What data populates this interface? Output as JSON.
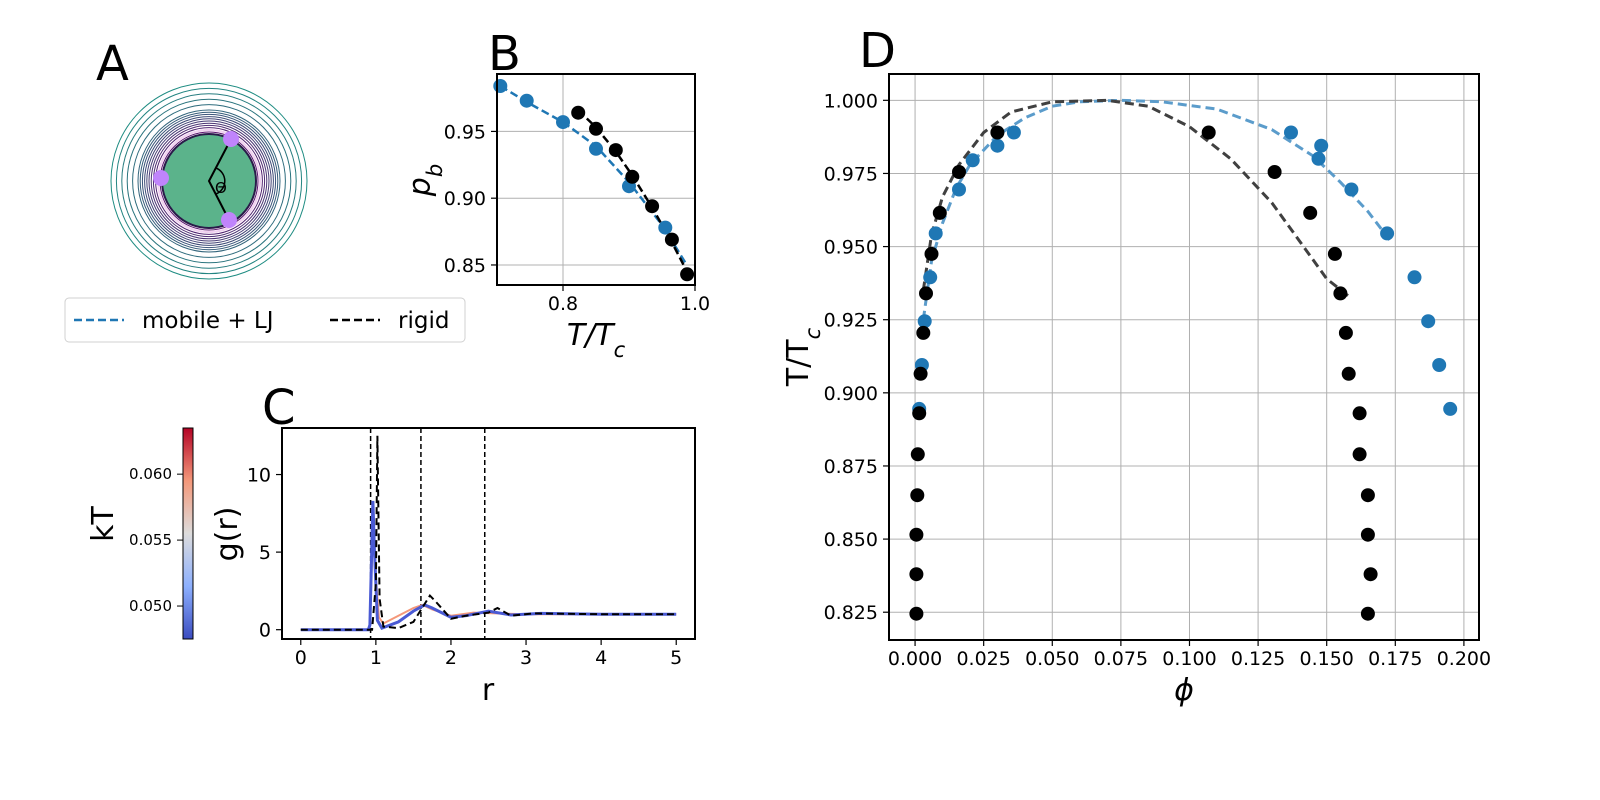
{
  "colors": {
    "mobile": "#1f77b4",
    "mobile_fit": "#5b9ccb",
    "rigid": "#000000",
    "rigid_fit": "#404040",
    "grid": "#b0b0b0",
    "core": "#5bb38b",
    "patch": "#c084fc"
  },
  "legend": {
    "mobile_label": "mobile + LJ",
    "rigid_label": "rigid"
  },
  "chart_data": [
    {
      "panel": "A",
      "type": "diagram",
      "label": "A",
      "angle_label": "Θ"
    },
    {
      "panel": "B",
      "type": "scatter",
      "label": "B",
      "xlabel": "T/T_c",
      "ylabel": "p_b",
      "xlim": [
        0.7,
        1.0
      ],
      "ylim": [
        0.835,
        0.993
      ],
      "xticks": [
        0.8,
        1.0
      ],
      "xtick_labels": [
        "0.8",
        "1.0"
      ],
      "yticks": [
        0.85,
        0.9,
        0.95
      ],
      "ytick_labels": [
        "0.85",
        "0.90",
        "0.95"
      ],
      "series": [
        {
          "name": "mobile + LJ",
          "x": [
            0.705,
            0.745,
            0.8,
            0.85,
            0.9,
            0.955
          ],
          "y": [
            0.984,
            0.973,
            0.957,
            0.937,
            0.909,
            0.878
          ],
          "fit_x": [
            0.705,
            0.745,
            0.8,
            0.85,
            0.9,
            0.95,
            0.985
          ],
          "fit_y": [
            0.984,
            0.972,
            0.957,
            0.939,
            0.912,
            0.88,
            0.852
          ]
        },
        {
          "name": "rigid",
          "x": [
            0.823,
            0.85,
            0.88,
            0.905,
            0.935,
            0.965,
            0.988
          ],
          "y": [
            0.964,
            0.952,
            0.936,
            0.916,
            0.894,
            0.869,
            0.843
          ],
          "fit_x": [
            0.823,
            0.85,
            0.88,
            0.905,
            0.935,
            0.965,
            0.99
          ],
          "fit_y": [
            0.966,
            0.953,
            0.935,
            0.917,
            0.893,
            0.867,
            0.843
          ]
        }
      ]
    },
    {
      "panel": "C",
      "type": "line",
      "label": "C",
      "xlabel": "r",
      "ylabel": "g(r)",
      "xlim": [
        -0.25,
        5.25
      ],
      "ylim": [
        -0.6,
        13.0
      ],
      "xticks": [
        0,
        1,
        2,
        3,
        4,
        5
      ],
      "xtick_labels": [
        "0",
        "1",
        "2",
        "3",
        "4",
        "5"
      ],
      "yticks": [
        0,
        5,
        10
      ],
      "ytick_labels": [
        "0",
        "5",
        "10"
      ],
      "vlines": [
        0.93,
        1.6,
        2.45
      ],
      "series": [
        {
          "name": "kT 0.050",
          "x": [
            0,
            0.9,
            0.92,
            0.96,
            0.98,
            1.02,
            1.08,
            1.3,
            1.5,
            1.65,
            1.75,
            2.0,
            2.2,
            2.5,
            2.8,
            3.2,
            4.0,
            5.0
          ],
          "y": [
            0,
            0,
            0.3,
            8.3,
            5.2,
            0.6,
            0.1,
            0.5,
            1.2,
            1.6,
            1.4,
            0.8,
            0.9,
            1.2,
            0.95,
            1.05,
            1.0,
            1.0
          ]
        },
        {
          "name": "kT 0.060",
          "x": [
            0,
            0.9,
            0.92,
            0.96,
            0.99,
            1.04,
            1.1,
            1.3,
            1.5,
            1.62,
            1.75,
            2.0,
            2.3,
            2.6,
            3.0,
            4.0,
            5.0
          ],
          "y": [
            0,
            0,
            0.2,
            6.5,
            4.0,
            0.8,
            0.4,
            0.9,
            1.4,
            1.6,
            1.3,
            0.9,
            1.1,
            1.05,
            1.0,
            1.0,
            1.0
          ]
        },
        {
          "name": "rigid",
          "x": [
            0,
            0.95,
            1.0,
            1.02,
            1.03,
            1.05,
            1.1,
            1.3,
            1.5,
            1.72,
            1.8,
            2.0,
            2.2,
            2.5,
            2.62,
            2.8,
            3.1,
            4.0,
            5.0
          ],
          "y": [
            0,
            0,
            3.0,
            12.5,
            9.0,
            2.0,
            0.2,
            0.1,
            0.5,
            2.2,
            1.8,
            0.7,
            0.9,
            1.1,
            1.4,
            0.9,
            1.05,
            1.0,
            1.0
          ]
        }
      ],
      "colorbar": {
        "label": "kT",
        "range": [
          0.0475,
          0.0635
        ],
        "ticks": [
          0.05,
          0.055,
          0.06
        ],
        "tick_labels": [
          "0.050",
          "0.055",
          "0.060"
        ]
      }
    },
    {
      "panel": "D",
      "type": "scatter",
      "label": "D",
      "xlabel": "ϕ",
      "ylabel": "T/T_c",
      "xlim": [
        -0.0095,
        0.2055
      ],
      "ylim": [
        0.8155,
        1.009
      ],
      "xticks": [
        0.0,
        0.025,
        0.05,
        0.075,
        0.1,
        0.125,
        0.15,
        0.175,
        0.2
      ],
      "xtick_labels": [
        "0.000",
        "0.025",
        "0.050",
        "0.075",
        "0.100",
        "0.125",
        "0.150",
        "0.175",
        "0.200"
      ],
      "yticks": [
        0.825,
        0.85,
        0.875,
        0.9,
        0.925,
        0.95,
        0.975,
        1.0
      ],
      "ytick_labels": [
        "0.825",
        "0.850",
        "0.875",
        "0.900",
        "0.925",
        "0.950",
        "0.975",
        "1.000"
      ],
      "series": [
        {
          "name": "mobile + LJ",
          "x": [
            0.0015,
            0.0025,
            0.0035,
            0.0055,
            0.0075,
            0.016,
            0.021,
            0.03,
            0.036,
            0.137,
            0.147,
            0.148,
            0.159,
            0.172,
            0.182,
            0.187,
            0.191,
            0.195
          ],
          "y": [
            0.8945,
            0.9095,
            0.9245,
            0.9395,
            0.9545,
            0.9695,
            0.9795,
            0.9845,
            0.989,
            0.989,
            0.98,
            0.9845,
            0.9695,
            0.9545,
            0.9395,
            0.9245,
            0.9095,
            0.8945
          ],
          "fit_x": [
            0.003,
            0.006,
            0.01,
            0.015,
            0.02,
            0.03,
            0.04,
            0.05,
            0.06,
            0.075,
            0.09,
            0.11,
            0.13,
            0.145,
            0.155,
            0.165,
            0.174
          ],
          "fit_y": [
            0.925,
            0.945,
            0.958,
            0.97,
            0.978,
            0.988,
            0.994,
            0.998,
            0.9995,
            1.0,
            0.9995,
            0.997,
            0.99,
            0.981,
            0.972,
            0.962,
            0.951
          ]
        },
        {
          "name": "rigid",
          "x": [
            0.0005,
            0.0005,
            0.0005,
            0.0008,
            0.001,
            0.0015,
            0.002,
            0.003,
            0.004,
            0.006,
            0.009,
            0.016,
            0.03,
            0.107,
            0.131,
            0.144,
            0.153,
            0.155,
            0.157,
            0.158,
            0.162,
            0.162,
            0.165,
            0.165,
            0.166,
            0.165
          ],
          "y": [
            0.8245,
            0.838,
            0.8515,
            0.865,
            0.879,
            0.893,
            0.9065,
            0.9205,
            0.934,
            0.9475,
            0.9615,
            0.9755,
            0.989,
            0.989,
            0.9755,
            0.9615,
            0.9475,
            0.934,
            0.9205,
            0.9065,
            0.893,
            0.879,
            0.865,
            0.8515,
            0.838,
            0.8245
          ],
          "fit_x": [
            0.003,
            0.006,
            0.01,
            0.016,
            0.025,
            0.035,
            0.05,
            0.07,
            0.085,
            0.1,
            0.115,
            0.13,
            0.14,
            0.15,
            0.158
          ],
          "fit_y": [
            0.935,
            0.954,
            0.967,
            0.978,
            0.989,
            0.996,
            0.9995,
            1.0,
            0.998,
            0.991,
            0.98,
            0.965,
            0.952,
            0.939,
            0.933
          ]
        }
      ]
    }
  ]
}
